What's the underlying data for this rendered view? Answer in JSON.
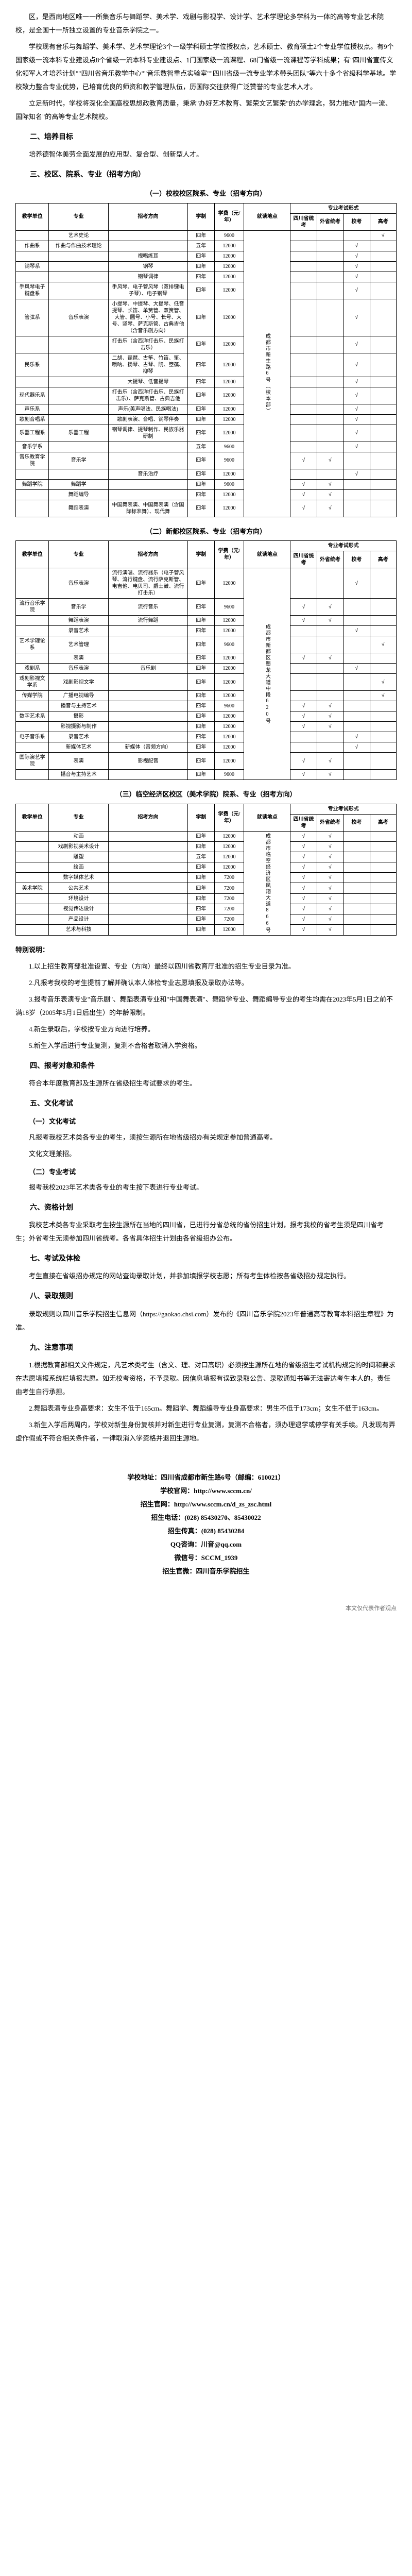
{
  "intro": {
    "p1": "区，是西南地区唯一一所集音乐与舞蹈学、美术学、戏剧与影视学、设计学、艺术学理论多学科为一体的高等专业艺术院校，是全国十一所独立设置的专业音乐学院之一。",
    "p2": "学校现有音乐与舞蹈学、美术学、艺术学理论3个一级学科硕士学位授权点，艺术硕士、教育硕士2个专业学位授权点。有9个国家级一流本科专业建设点8个省级一流本科专业建设点、1门国家级一流课程、68门省级一流课程等学科成果；有\"四川省宣传文化领军人才培养计划\"\"四川省音乐教学中心\"\"音乐数智重点实验室\"\"四川省级一流专业学术带头团队\"等六十多个省级科学基地。学校致力整合专业优势，已培育优良的师资和教学管理队伍，历国际交往获得广泛赞誉的专业艺术人才。",
    "p3": "立足新时代，学校将深化全国高校思想政教育质量，秉承\"办好艺术教育、繁荣文艺繁荣\"的办学理念，努力推动\"国内一流、国际知名\"的高等专业艺术院校。"
  },
  "section2": {
    "title": "二、培养目标",
    "content": "培养德智体美劳全面发展的应用型、复合型、创新型人才。"
  },
  "section3": {
    "title": "三、校区、院系、专业（招考方向）"
  },
  "table1": {
    "caption": "（一）校校校区院系、专业（招考方向）",
    "headers": {
      "dept": "教学单位",
      "major": "专业",
      "dir": "招考方向",
      "edu": "学制",
      "fee": "学费（元/年）",
      "addr1": "就读地点",
      "addr2": "就读地点",
      "flag1": "四川省统考",
      "flag2": "外省统考",
      "flag3": "校考",
      "flag4": "高考"
    },
    "addr_campus": "成都市新生路6号（校本部）",
    "rows": [
      {
        "dept": "",
        "major": "艺术史论",
        "dir": "",
        "edu": "四年",
        "fee": "9600",
        "f1": "",
        "f2": "",
        "f3": "",
        "f4": "√"
      },
      {
        "dept": "作曲系",
        "major": "作曲与作曲技术理论",
        "dir": "",
        "edu": "五年",
        "fee": "12000",
        "f1": "",
        "f2": "",
        "f3": "√",
        "f4": ""
      },
      {
        "dept": "",
        "major": "",
        "dir": "视唱练耳",
        "edu": "四年",
        "fee": "12000",
        "f1": "",
        "f2": "",
        "f3": "√",
        "f4": ""
      },
      {
        "dept": "钢琴系",
        "major": "",
        "dir": "钢琴",
        "edu": "四年",
        "fee": "12000",
        "f1": "",
        "f2": "",
        "f3": "√",
        "f4": ""
      },
      {
        "dept": "",
        "major": "",
        "dir": "钢琴调律",
        "edu": "四年",
        "fee": "12000",
        "f1": "",
        "f2": "",
        "f3": "√",
        "f4": ""
      },
      {
        "dept": "手风琴电子键盘系",
        "major": "",
        "dir": "手风琴、电子管风琴（双排键电子琴）、电子钢琴",
        "edu": "四年",
        "fee": "12000",
        "f1": "",
        "f2": "",
        "f3": "√",
        "f4": ""
      },
      {
        "dept": "管弦系",
        "major": "音乐表演",
        "dir": "小提琴、中提琴、大提琴、低音提琴、长笛、单簧管、双簧管、大管、圆号、小号、长号、大号、竖琴、萨克斯管、古典吉他（含音乐剧方向）",
        "edu": "四年",
        "fee": "12000",
        "f1": "",
        "f2": "",
        "f3": "√",
        "f4": ""
      },
      {
        "dept": "",
        "major": "",
        "dir": "打击乐（含西洋打击乐、民族打击乐）",
        "edu": "四年",
        "fee": "12000",
        "f1": "",
        "f2": "",
        "f3": "√",
        "f4": ""
      },
      {
        "dept": "民乐系",
        "major": "",
        "dir": "二胡、琵琶、古筝、竹笛、笙、唢呐、扬琴、古琴、阮、箜篌、柳琴",
        "edu": "四年",
        "fee": "12000",
        "f1": "",
        "f2": "",
        "f3": "√",
        "f4": ""
      },
      {
        "dept": "",
        "major": "",
        "dir": "大提琴、低音提琴",
        "edu": "四年",
        "fee": "12000",
        "f1": "",
        "f2": "",
        "f3": "√",
        "f4": ""
      },
      {
        "dept": "现代器乐系",
        "major": "",
        "dir": "打击乐（含西洋打击乐、民族打击乐）、萨克斯管、古典吉他",
        "edu": "四年",
        "fee": "12000",
        "f1": "",
        "f2": "",
        "f3": "√",
        "f4": ""
      },
      {
        "dept": "声乐系",
        "major": "",
        "dir": "声乐(美声唱法、民族唱法)",
        "edu": "四年",
        "fee": "12000",
        "f1": "",
        "f2": "",
        "f3": "√",
        "f4": ""
      },
      {
        "dept": "歌剧合唱系",
        "major": "",
        "dir": "歌剧表演、合唱、钢琴伴奏",
        "edu": "四年",
        "fee": "12000",
        "f1": "",
        "f2": "",
        "f3": "√",
        "f4": ""
      },
      {
        "dept": "乐器工程系",
        "major": "乐器工程",
        "dir": "钢琴调律、提琴制作、民族乐器研制",
        "edu": "四年",
        "fee": "12000",
        "f1": "",
        "f2": "",
        "f3": "√",
        "f4": ""
      },
      {
        "dept": "音乐学系",
        "major": "",
        "dir": "",
        "edu": "五年",
        "fee": "9600",
        "f1": "",
        "f2": "",
        "f3": "√",
        "f4": ""
      },
      {
        "dept": "音乐教育学院",
        "major": "音乐学",
        "dir": "",
        "edu": "四年",
        "fee": "9600",
        "f1": "√",
        "f2": "√",
        "f3": "",
        "f4": ""
      },
      {
        "dept": "",
        "major": "",
        "dir": "音乐治疗",
        "edu": "四年",
        "fee": "12000",
        "f1": "",
        "f2": "",
        "f3": "√",
        "f4": ""
      },
      {
        "dept": "舞蹈学院",
        "major": "舞蹈学",
        "dir": "",
        "edu": "四年",
        "fee": "9600",
        "f1": "√",
        "f2": "√",
        "f3": "",
        "f4": ""
      },
      {
        "dept": "",
        "major": "舞蹈编导",
        "dir": "",
        "edu": "四年",
        "fee": "12000",
        "f1": "√",
        "f2": "√",
        "f3": "",
        "f4": ""
      },
      {
        "dept": "",
        "major": "舞蹈表演",
        "dir": "中国舞表演、中国舞表演（含国际标准舞）、现代舞",
        "edu": "四年",
        "fee": "12000",
        "f1": "√",
        "f2": "√",
        "f3": "",
        "f4": ""
      }
    ]
  },
  "table2": {
    "caption": "（二）新都校区院系、专业（招考方向）",
    "addr_campus": "成都市新都区蜀龙大道中段620号",
    "rows": [
      {
        "dept": "",
        "major": "音乐表演",
        "dir": "流行演唱、流行器乐（电子管风琴、流行键盘、流行萨克斯管、电吉他、电贝司、爵士鼓、流行打击乐）",
        "edu": "四年",
        "fee": "12000",
        "f1": "",
        "f2": "",
        "f3": "√",
        "f4": ""
      },
      {
        "dept": "流行音乐学院",
        "major": "音乐学",
        "dir": "流行音乐",
        "edu": "四年",
        "fee": "9600",
        "f1": "√",
        "f2": "√",
        "f3": "",
        "f4": ""
      },
      {
        "dept": "",
        "major": "舞蹈表演",
        "dir": "流行舞蹈",
        "edu": "四年",
        "fee": "12000",
        "f1": "√",
        "f2": "√",
        "f3": "",
        "f4": ""
      },
      {
        "dept": "",
        "major": "录音艺术",
        "dir": "",
        "edu": "四年",
        "fee": "12000",
        "f1": "",
        "f2": "",
        "f3": "√",
        "f4": ""
      },
      {
        "dept": "艺术学理论系",
        "major": "艺术管理",
        "dir": "",
        "edu": "四年",
        "fee": "9600",
        "f1": "",
        "f2": "",
        "f3": "",
        "f4": "√"
      },
      {
        "dept": "",
        "major": "表演",
        "dir": "",
        "edu": "四年",
        "fee": "12000",
        "f1": "√",
        "f2": "√",
        "f3": "",
        "f4": ""
      },
      {
        "dept": "戏剧系",
        "major": "音乐表演",
        "dir": "音乐剧",
        "edu": "四年",
        "fee": "12000",
        "f1": "",
        "f2": "",
        "f3": "√",
        "f4": ""
      },
      {
        "dept": "戏剧影视文学系",
        "major": "戏剧影视文学",
        "dir": "",
        "edu": "四年",
        "fee": "12000",
        "f1": "",
        "f2": "",
        "f3": "",
        "f4": "√"
      },
      {
        "dept": "传媒学院",
        "major": "广播电视编导",
        "dir": "",
        "edu": "四年",
        "fee": "12000",
        "f1": "",
        "f2": "",
        "f3": "",
        "f4": "√"
      },
      {
        "dept": "",
        "major": "播音与主持艺术",
        "dir": "",
        "edu": "四年",
        "fee": "9600",
        "f1": "√",
        "f2": "√",
        "f3": "",
        "f4": ""
      },
      {
        "dept": "数字艺术系",
        "major": "摄影",
        "dir": "",
        "edu": "四年",
        "fee": "12000",
        "f1": "√",
        "f2": "√",
        "f3": "",
        "f4": ""
      },
      {
        "dept": "",
        "major": "影视摄影与制作",
        "dir": "",
        "edu": "四年",
        "fee": "12000",
        "f1": "√",
        "f2": "√",
        "f3": "",
        "f4": ""
      },
      {
        "dept": "电子音乐系",
        "major": "录音艺术",
        "dir": "",
        "edu": "四年",
        "fee": "12000",
        "f1": "",
        "f2": "",
        "f3": "√",
        "f4": ""
      },
      {
        "dept": "",
        "major": "新媒体艺术",
        "dir": "新媒体（音频方向）",
        "edu": "四年",
        "fee": "12000",
        "f1": "",
        "f2": "",
        "f3": "√",
        "f4": ""
      },
      {
        "dept": "国际演艺学院",
        "major": "表演",
        "dir": "影视配音",
        "edu": "四年",
        "fee": "12000",
        "f1": "√",
        "f2": "√",
        "f3": "",
        "f4": ""
      },
      {
        "dept": "",
        "major": "播音与主持艺术",
        "dir": "",
        "edu": "四年",
        "fee": "9600",
        "f1": "√",
        "f2": "√",
        "f3": "",
        "f4": ""
      }
    ]
  },
  "table3": {
    "caption": "（三）临空经济区校区（美术学院）院系、专业（招考方向）",
    "addr_campus": "成都市临空经济区凤翔大道866号",
    "rows": [
      {
        "dept": "",
        "major": "动画",
        "dir": "",
        "edu": "四年",
        "fee": "12000",
        "f1": "√",
        "f2": "√",
        "f3": "",
        "f4": ""
      },
      {
        "dept": "",
        "major": "戏剧影视美术设计",
        "dir": "",
        "edu": "四年",
        "fee": "12000",
        "f1": "√",
        "f2": "√",
        "f3": "",
        "f4": ""
      },
      {
        "dept": "",
        "major": "雕塑",
        "dir": "",
        "edu": "五年",
        "fee": "12000",
        "f1": "√",
        "f2": "√",
        "f3": "",
        "f4": ""
      },
      {
        "dept": "",
        "major": "绘画",
        "dir": "",
        "edu": "四年",
        "fee": "12000",
        "f1": "√",
        "f2": "√",
        "f3": "",
        "f4": ""
      },
      {
        "dept": "",
        "major": "数字媒体艺术",
        "dir": "",
        "edu": "四年",
        "fee": "7200",
        "f1": "√",
        "f2": "√",
        "f3": "",
        "f4": ""
      },
      {
        "dept": "美术学院",
        "major": "公共艺术",
        "dir": "",
        "edu": "四年",
        "fee": "7200",
        "f1": "√",
        "f2": "√",
        "f3": "",
        "f4": ""
      },
      {
        "dept": "",
        "major": "环境设计",
        "dir": "",
        "edu": "四年",
        "fee": "7200",
        "f1": "√",
        "f2": "√",
        "f3": "",
        "f4": ""
      },
      {
        "dept": "",
        "major": "视觉传达设计",
        "dir": "",
        "edu": "四年",
        "fee": "7200",
        "f1": "√",
        "f2": "√",
        "f3": "",
        "f4": ""
      },
      {
        "dept": "",
        "major": "产品设计",
        "dir": "",
        "edu": "四年",
        "fee": "7200",
        "f1": "√",
        "f2": "√",
        "f3": "",
        "f4": ""
      },
      {
        "dept": "",
        "major": "艺术与科技",
        "dir": "",
        "edu": "四年",
        "fee": "12000",
        "f1": "√",
        "f2": "√",
        "f3": "",
        "f4": ""
      }
    ]
  },
  "special": {
    "title": "特别说明：",
    "p1": "1.以上招生教育部批准设置、专业（方向）最终以四川省教育厅批准的招生专业目录为准。",
    "p2": "2.凡报考我校的考生提前了解并确认本人体检专业志愿填报及录取办法等。",
    "p3": "3.报考音乐表演专业\"音乐剧\"、舞蹈表演专业和\"中国舞表演\"、舞蹈学专业、舞蹈编导专业的考生均需在2023年5月1日之前不满18岁（2005年5月1日后出生）的年龄限制。",
    "p4": "4.新生录取后，学校按专业方向进行培养。",
    "p5": "5.新生入学后进行专业复测，复测不合格者取消入学资格。"
  },
  "section4": {
    "title": "四、报考对象和条件",
    "content": "符合本年度教育部及生源所在省级招生考试要求的考生。"
  },
  "section5": {
    "title": "五、文化考试",
    "sub1": "（一）文化考试",
    "p1": "凡报考我校艺术类各专业的考生，须按生源所在地省级招办有关规定参加普通高考。",
    "p2": "文化文理兼招。",
    "sub2": "（二）专业考试",
    "p3": "报考我校2023年艺术类各专业的考生按下表进行专业考试。"
  },
  "section6": {
    "title": "六、资格计划",
    "p1": "我校艺术类各专业采取考生按生源所在当地的四川省，已进行分省总统的省份招生计划，报考我校的省考生须是四川省考生；外省考生无须参加四川省统考。各省具体招生计划由各省级招办公布。"
  },
  "section7": {
    "title": "七、考试及体检",
    "p1": "考生直接在省级招办规定的网站查询录取计划，并参加填报学校志愿；所有考生体检按各省级招办规定执行。"
  },
  "section8": {
    "title": "八、录取规则",
    "p1": "录取规则以四川音乐学院招生信息网（https://gaokao.chsi.com）发布的《四川音乐学院2023年普通高等教育本科招生章程》为准。"
  },
  "section9": {
    "title": "九、注意事项",
    "p1": "1.根据教育部相关文件规定，凡艺术类考生（含文、理、对口高职）必须按生源所在地的省级招生考试机构规定的时间和要求在志愿填报系统栏填报志愿。如无校考资格，不予录取。因信息填报有误致录取公告、录取通知书等无法寄达考生本人的，责任由考生自行承担。",
    "p2": "2.舞蹈表演专业身高要求：女生不低于165cm。舞蹈学、舞蹈编导专业身高要求：男生不低于173cm；女生不低于163cm。",
    "p3": "3.新生入学后两周内，学校对新生身份复核并对新生进行专业复测，复测不合格者，须办理退学或停学有关手续。凡发现有弄虚作假或不符合相关条件者，一律取消入学资格并退回生源地。"
  },
  "footer": {
    "addr": "学校地址：四川省成都市新生路6号（邮编：610021）",
    "site": "学校官网：http://www.sccm.cn/",
    "zs": "招生官网：http://www.sccm.cn/d_zs_zsc.html",
    "tel": "招生电话：(028) 85430270、85430022",
    "fax": "招生传真：(028) 85430284",
    "qq": "QQ咨询：川音@qq.com",
    "wechat": "微信号：SCCM_1939",
    "wechat2": "招生官微：四川音乐学院招生"
  },
  "footnote": "本文仅代表作者观点"
}
